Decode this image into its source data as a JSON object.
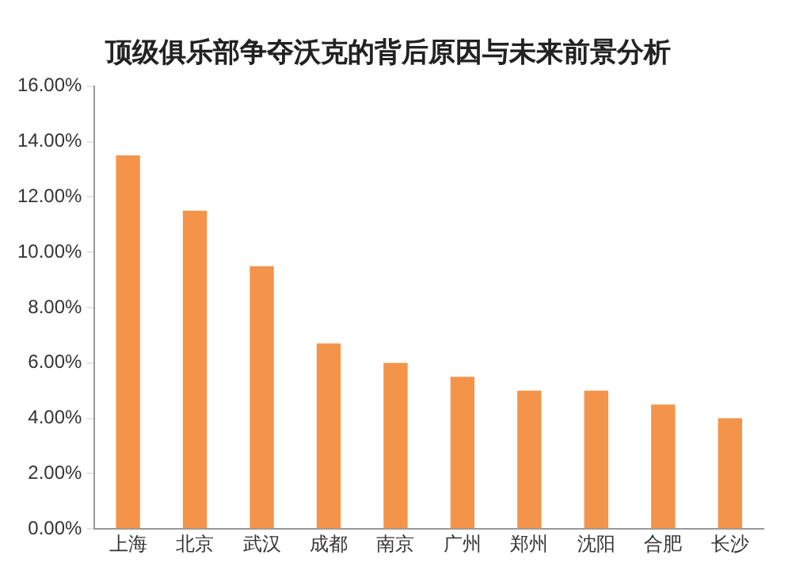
{
  "chart_data": {
    "type": "bar",
    "title": "顶级俱乐部争夺沃克的背后原因与未来前景分析",
    "categories": [
      "上海",
      "北京",
      "武汉",
      "成都",
      "南京",
      "广州",
      "郑州",
      "沈阳",
      "合肥",
      "长沙"
    ],
    "values": [
      13.5,
      11.5,
      9.5,
      6.7,
      6.0,
      5.5,
      5.0,
      5.0,
      4.5,
      4.0
    ],
    "color": "#f4944a",
    "ylim": [
      0,
      16
    ],
    "yticks": [
      {
        "value": 0,
        "label": "0.00%"
      },
      {
        "value": 2,
        "label": "2.00%"
      },
      {
        "value": 4,
        "label": "4.00%"
      },
      {
        "value": 6,
        "label": "6.00%"
      },
      {
        "value": 8,
        "label": "8.00%"
      },
      {
        "value": 10,
        "label": "10.00%"
      },
      {
        "value": 12,
        "label": "12.00%"
      },
      {
        "value": 14,
        "label": "14.00%"
      },
      {
        "value": 16,
        "label": "16.00%"
      }
    ],
    "grid": false,
    "legend": false
  }
}
